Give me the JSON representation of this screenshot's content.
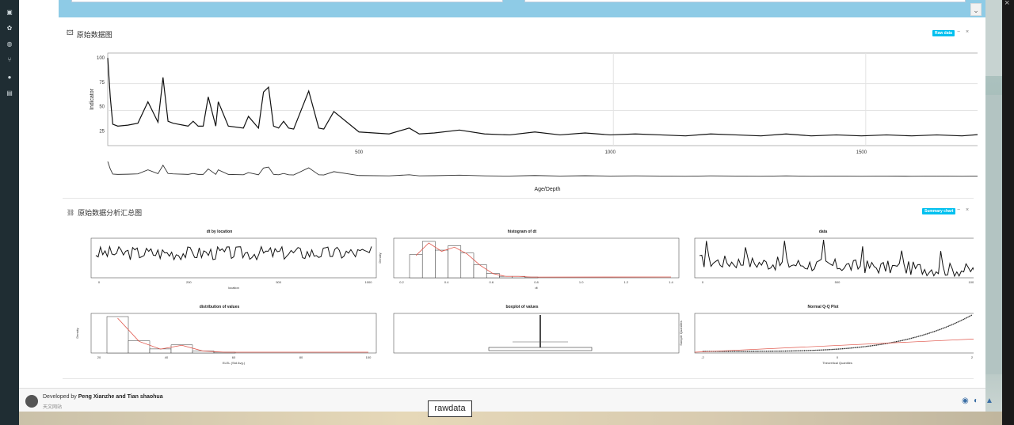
{
  "panel_raw": {
    "title": "原始数据图",
    "badge": "Raw data",
    "minimize": "−",
    "close": "×",
    "chart_data": {
      "type": "line",
      "ylabel": "Indicator",
      "xlabel": "Age/Depth",
      "yticks": [
        "100",
        "75",
        "50",
        "25"
      ],
      "xticks": [
        "500",
        "1000",
        "1500"
      ],
      "xlim": [
        0,
        1750
      ],
      "ylim": [
        10,
        105
      ],
      "series": [
        {
          "x": [
            0,
            5,
            10,
            20,
            40,
            60,
            80,
            100,
            110,
            120,
            130,
            140,
            150,
            160,
            170,
            180,
            190,
            200,
            215,
            220,
            240,
            270,
            280,
            300,
            310,
            320,
            330,
            340,
            350,
            360,
            370,
            400,
            420,
            430,
            450,
            500,
            560,
            600,
            620,
            650,
            700,
            750,
            800,
            850,
            900,
            950,
            1000,
            1050,
            1100,
            1150,
            1200,
            1250,
            1300,
            1350,
            1400,
            1450,
            1500,
            1550,
            1600,
            1650,
            1700,
            1750
          ],
          "y": [
            100,
            60,
            32,
            30,
            31,
            33,
            55,
            34,
            80,
            35,
            33,
            32,
            31,
            30,
            35,
            30,
            30,
            60,
            30,
            55,
            30,
            28,
            40,
            28,
            65,
            70,
            30,
            28,
            35,
            28,
            27,
            66,
            28,
            27,
            45,
            24,
            22,
            28,
            22,
            23,
            26,
            22,
            21,
            24,
            21,
            23,
            21,
            22,
            21,
            20,
            22,
            21,
            20,
            22,
            20,
            21,
            20,
            21,
            20,
            21,
            20,
            22
          ]
        }
      ]
    }
  },
  "panel_summary": {
    "title": "原始数据分析汇总图",
    "badge": "Summary chart",
    "minimize": "−",
    "close": "×",
    "charts": [
      {
        "title": "dt by location",
        "xlabel": "location",
        "type": "line",
        "xticks": [
          "0",
          "200",
          "500",
          "1000"
        ]
      },
      {
        "title": "histogram of dt",
        "xlabel": "dt",
        "ylabel": "Density",
        "type": "bar",
        "categories": [
          "0.1",
          "0.2",
          "0.3",
          "0.4",
          "0.5",
          "0.6",
          "0.7",
          "0.8",
          "0.9",
          "1.0"
        ],
        "values": [
          1.6,
          2.5,
          1.9,
          2.2,
          1.7,
          0.9,
          0.3,
          0.1,
          0.1,
          0.05
        ],
        "xticks": [
          "0.2",
          "0.4",
          "0.6",
          "0.8",
          "1.0",
          "1.2",
          "1.4"
        ]
      },
      {
        "title": "data",
        "type": "line",
        "xticks": [
          "0",
          "500",
          "1000"
        ]
      },
      {
        "title": "distribution of values",
        "xlabel": "ELEL (Std Avg.)",
        "ylabel": "Density",
        "type": "bar",
        "categories": [
          "15",
          "20",
          "25",
          "30",
          "35",
          "40"
        ],
        "values": [
          0.09,
          0.03,
          0.01,
          0.02,
          0.005,
          0.002
        ],
        "xticks": [
          "20",
          "40",
          "60",
          "80",
          "100"
        ]
      },
      {
        "title": "boxplot of values",
        "type": "box"
      },
      {
        "title": "Normal Q-Q Plot",
        "xlabel": "Theoretical Quantiles",
        "ylabel": "Sample Quantiles",
        "type": "scatter",
        "xticks": [
          "-2",
          "0",
          "2"
        ]
      }
    ]
  },
  "footer": {
    "developed_by": "Developed by",
    "names": "Peng Xianzhe and Tian shaohua",
    "subtitle": "天文网站"
  },
  "tooltip": "rawdata",
  "colors": {
    "accent": "#00c0ef",
    "sidebar": "#1f2d33",
    "strip": "#8ecbe6"
  }
}
